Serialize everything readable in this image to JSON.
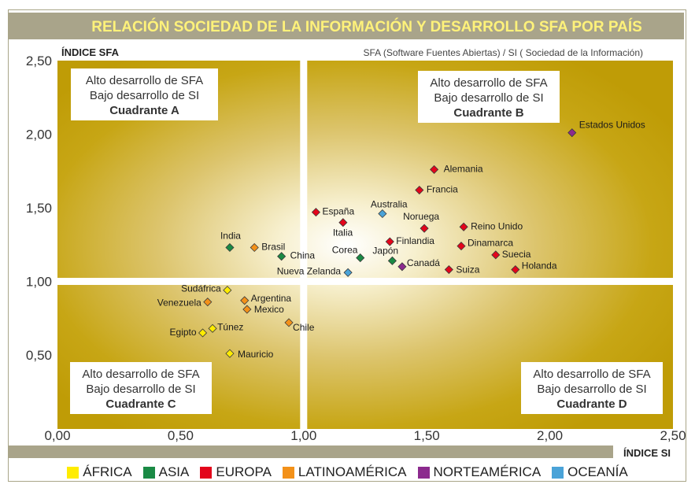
{
  "chart_data": {
    "type": "scatter",
    "title": "RELACIÓN SOCIEDAD DE LA INFORMACIÓN Y DESARROLLO SFA POR PAÍS",
    "subtitle": "SFA (Software Fuentes Abiertas) / SI ( Sociedad de la Información)",
    "xlabel": "ÍNDICE SI",
    "ylabel": "ÍNDICE SFA",
    "xlim": [
      0,
      2.5
    ],
    "ylim": [
      0.3,
      2.5
    ],
    "x_ticks": [
      "0,00",
      "0,50",
      "1,00",
      "1,50",
      "2,00",
      "2,50"
    ],
    "y_ticks": [
      "0,50",
      "1,00",
      "1,50",
      "2,00",
      "2,50"
    ],
    "divider": {
      "x": 1.0,
      "y": 1.0
    },
    "quadrants": [
      {
        "id": "A",
        "lines": [
          "Alto desarrollo de SFA",
          "Bajo desarrollo de SI",
          "Cuadrante A"
        ]
      },
      {
        "id": "B",
        "lines": [
          "Alto desarrollo de SFA",
          "Bajo desarrollo de SI",
          "Cuadrante B"
        ]
      },
      {
        "id": "C",
        "lines": [
          "Alto desarrollo de SFA",
          "Bajo desarrollo de SI",
          "Cuadrante C"
        ]
      },
      {
        "id": "D",
        "lines": [
          "Alto desarrollo de SFA",
          "Bajo desarrollo de SI",
          "Cuadrante D"
        ]
      }
    ],
    "colors": {
      "africa": "#ffec00",
      "asia": "#1a8a45",
      "europa": "#e3051b",
      "latinoamerica": "#f39119",
      "norteamerica": "#8c2a8e",
      "oceania": "#4aa3d8"
    },
    "legend": [
      {
        "key": "africa",
        "label": "ÁFRICA"
      },
      {
        "key": "asia",
        "label": "ASIA"
      },
      {
        "key": "europa",
        "label": "EUROPA"
      },
      {
        "key": "latinoamerica",
        "label": "LATINOAMÉRICA"
      },
      {
        "key": "norteamerica",
        "label": "NORTEAMÉRICA"
      },
      {
        "key": "oceania",
        "label": "OCEANÍA"
      }
    ],
    "points": [
      {
        "label": "Estados Unidos",
        "x": 2.09,
        "y": 2.01,
        "group": "norteamerica"
      },
      {
        "label": "Alemania",
        "x": 1.53,
        "y": 1.76,
        "group": "europa"
      },
      {
        "label": "Francia",
        "x": 1.47,
        "y": 1.62,
        "group": "europa"
      },
      {
        "label": "España",
        "x": 1.05,
        "y": 1.47,
        "group": "europa"
      },
      {
        "label": "Italia",
        "x": 1.16,
        "y": 1.4,
        "group": "europa"
      },
      {
        "label": "Australia",
        "x": 1.32,
        "y": 1.46,
        "group": "oceania"
      },
      {
        "label": "Noruega",
        "x": 1.49,
        "y": 1.36,
        "group": "europa"
      },
      {
        "label": "Reino Unido",
        "x": 1.65,
        "y": 1.37,
        "group": "europa"
      },
      {
        "label": "Finlandia",
        "x": 1.35,
        "y": 1.27,
        "group": "europa"
      },
      {
        "label": "Dinamarca",
        "x": 1.64,
        "y": 1.24,
        "group": "europa"
      },
      {
        "label": "Suecia",
        "x": 1.78,
        "y": 1.18,
        "group": "europa"
      },
      {
        "label": "Holanda",
        "x": 1.86,
        "y": 1.08,
        "group": "europa"
      },
      {
        "label": "Suiza",
        "x": 1.59,
        "y": 1.08,
        "group": "europa"
      },
      {
        "label": "Canadá",
        "x": 1.4,
        "y": 1.1,
        "group": "norteamerica"
      },
      {
        "label": "Japón",
        "x": 1.36,
        "y": 1.14,
        "group": "asia"
      },
      {
        "label": "Corea",
        "x": 1.23,
        "y": 1.16,
        "group": "asia"
      },
      {
        "label": "Nueva Zelanda",
        "x": 1.18,
        "y": 1.06,
        "group": "oceania"
      },
      {
        "label": "China",
        "x": 0.91,
        "y": 1.17,
        "group": "asia"
      },
      {
        "label": "Brasil",
        "x": 0.8,
        "y": 1.23,
        "group": "latinoamerica"
      },
      {
        "label": "India",
        "x": 0.7,
        "y": 1.23,
        "group": "asia"
      },
      {
        "label": "Sudáfrica",
        "x": 0.69,
        "y": 0.94,
        "group": "africa"
      },
      {
        "label": "Venezuela",
        "x": 0.61,
        "y": 0.86,
        "group": "latinoamerica"
      },
      {
        "label": "Argentina",
        "x": 0.76,
        "y": 0.87,
        "group": "latinoamerica"
      },
      {
        "label": "Mexico",
        "x": 0.77,
        "y": 0.81,
        "group": "latinoamerica"
      },
      {
        "label": "Chile",
        "x": 0.94,
        "y": 0.72,
        "group": "latinoamerica"
      },
      {
        "label": "Túnez",
        "x": 0.63,
        "y": 0.68,
        "group": "africa"
      },
      {
        "label": "Egipto",
        "x": 0.59,
        "y": 0.65,
        "group": "africa"
      },
      {
        "label": "Mauricio",
        "x": 0.7,
        "y": 0.51,
        "group": "africa"
      }
    ]
  }
}
